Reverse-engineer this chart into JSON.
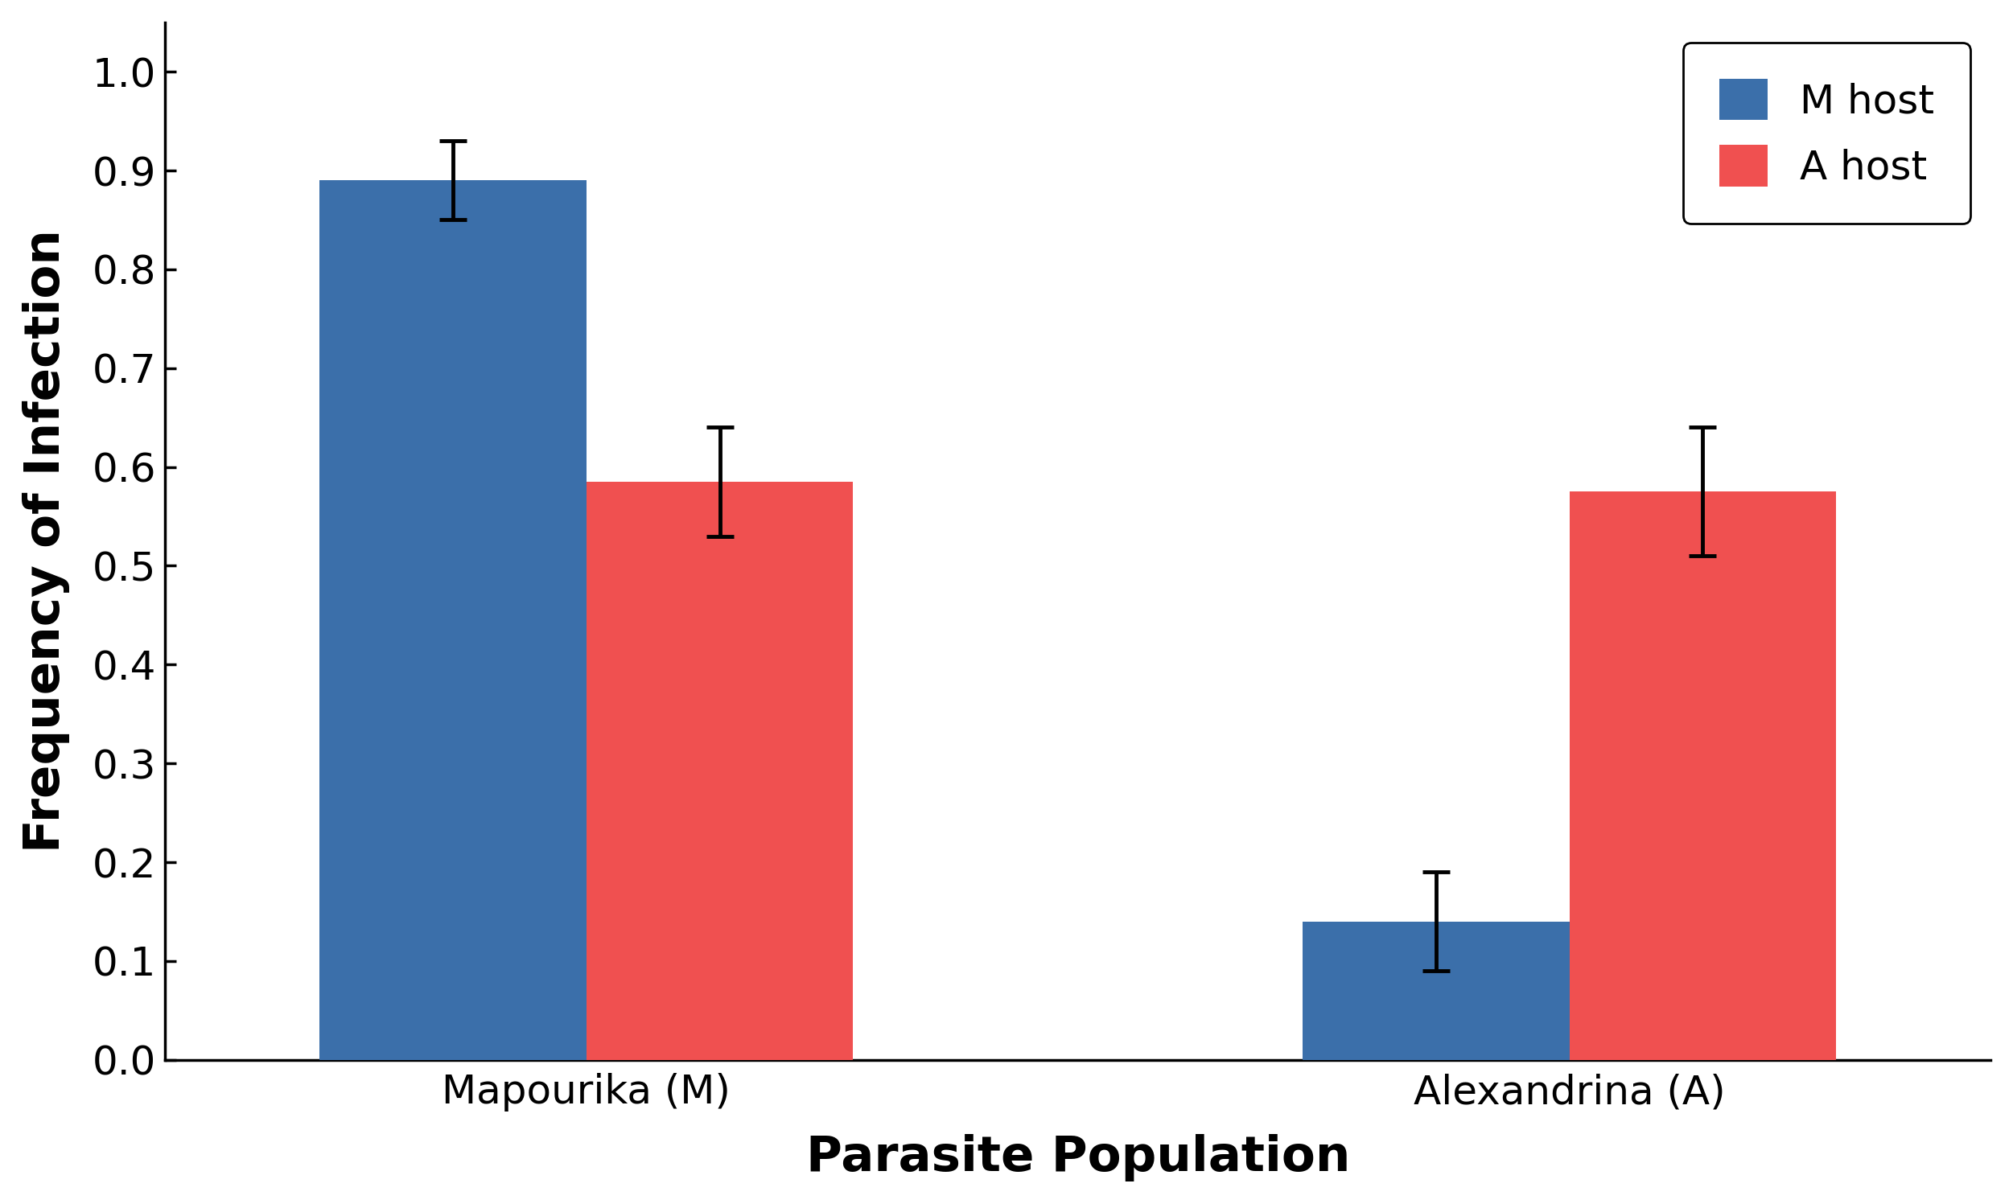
{
  "groups": [
    "Mapourika (M)",
    "Alexandrina (A)"
  ],
  "series": [
    {
      "label": "M host",
      "color": "#3b6faa",
      "values": [
        0.89,
        0.14
      ],
      "errors": [
        0.04,
        0.05
      ]
    },
    {
      "label": "A host",
      "color": "#f05050",
      "values": [
        0.585,
        0.575
      ],
      "errors": [
        0.055,
        0.065
      ]
    }
  ],
  "ylabel": "Frequency of Infection",
  "xlabel": "Parasite Population",
  "ylim": [
    0.0,
    1.05
  ],
  "yticks": [
    0.0,
    0.1,
    0.2,
    0.3,
    0.4,
    0.5,
    0.6,
    0.7,
    0.8,
    0.9,
    1.0
  ],
  "bar_width": 0.38,
  "background_color": "#ffffff",
  "legend_fontsize": 36,
  "axis_label_fontsize": 44,
  "tick_fontsize": 36,
  "group_positions": [
    0.0,
    1.4
  ],
  "xlim": [
    -0.6,
    2.0
  ]
}
